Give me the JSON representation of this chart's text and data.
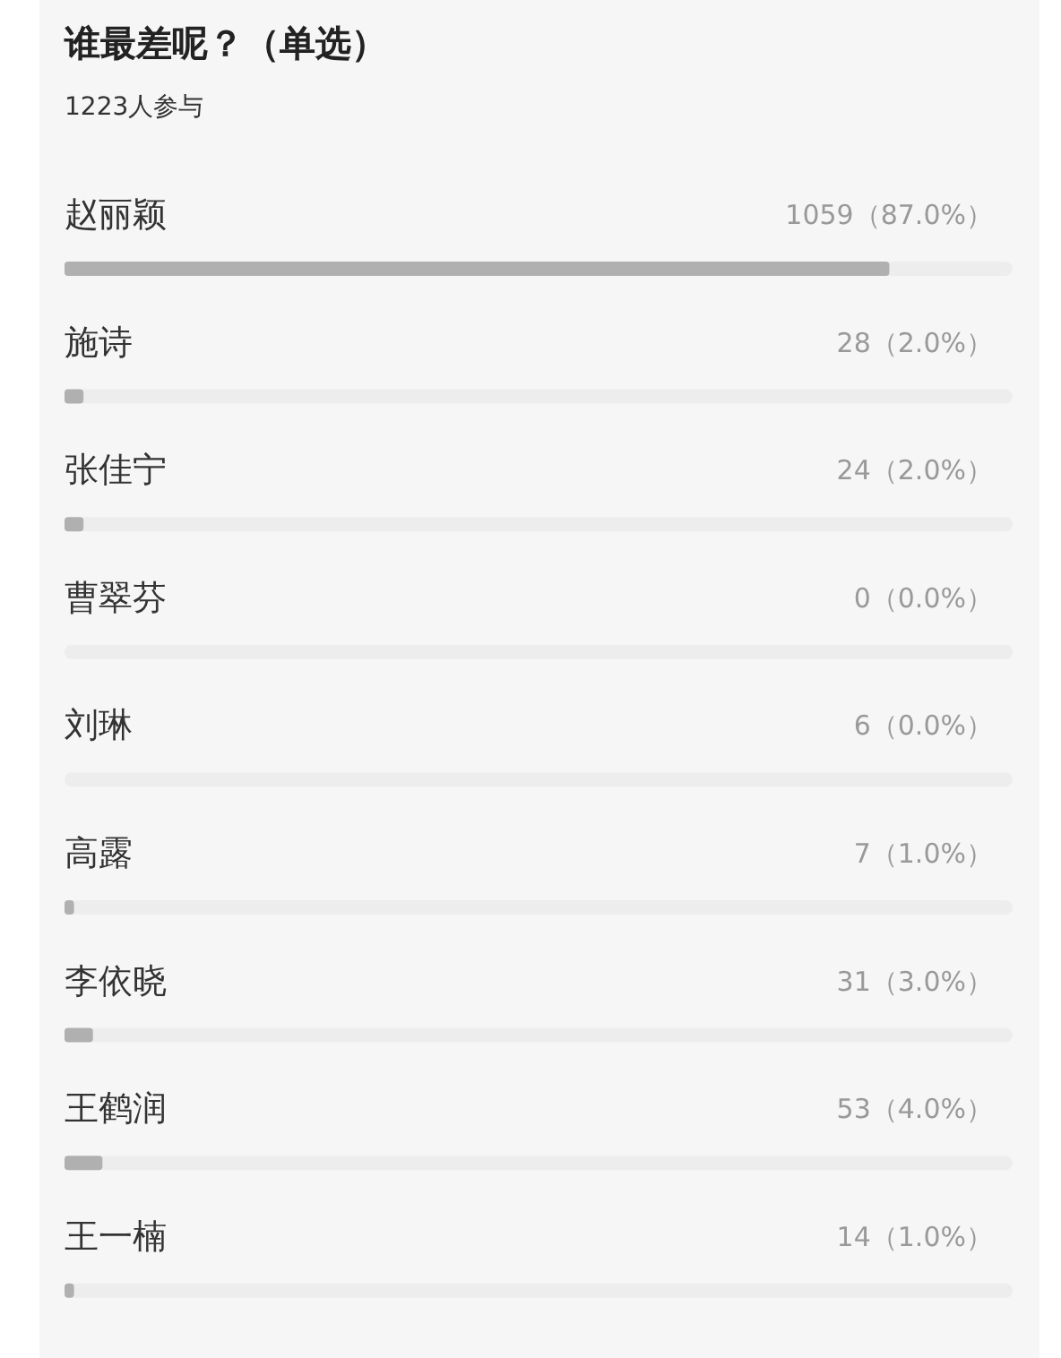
{
  "chart_data": {
    "type": "bar",
    "orientation": "horizontal",
    "title": "谁最差呢？（单选）",
    "subtitle": "1223人参与",
    "categories": [
      "赵丽颖",
      "施诗",
      "张佳宁",
      "曹翠芬",
      "刘琳",
      "高露",
      "李依晓",
      "王鹤润",
      "王一楠"
    ],
    "values": [
      87.0,
      2.0,
      2.0,
      0.0,
      0.0,
      1.0,
      3.0,
      4.0,
      1.0
    ],
    "value_labels": [
      "1059（87.0%）",
      "28（2.0%）",
      "24（2.0%）",
      "0（0.0%）",
      "6（0.0%）",
      "7（1.0%）",
      "31（3.0%）",
      "53（4.0%）",
      "14（1.0%）"
    ],
    "color": "#b0b0b0",
    "xlim": [
      0,
      100
    ],
    "tick_labels": "y"
  }
}
